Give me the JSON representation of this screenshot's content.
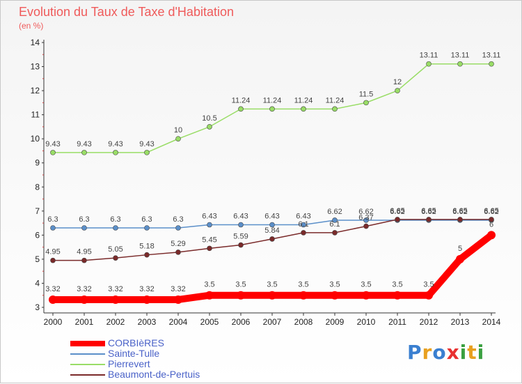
{
  "title": "Evolution du Taux de Taxe d'Habitation",
  "subtitle": "(en %)",
  "logo": {
    "letters": [
      "P",
      "r",
      "o",
      "x",
      "i",
      "t",
      "i"
    ],
    "colors": [
      "#3a7fd0",
      "#e8a020",
      "#3a7fd0",
      "#e83030",
      "#3aa040",
      "#e8a020",
      "#3aa040"
    ]
  },
  "chart_data": {
    "type": "line",
    "x": [
      2000,
      2001,
      2002,
      2003,
      2004,
      2005,
      2006,
      2007,
      2008,
      2009,
      2010,
      2011,
      2012,
      2013,
      2014
    ],
    "ylim": [
      3,
      14
    ],
    "yticks": [
      3,
      4,
      5,
      6,
      7,
      8,
      9,
      10,
      11,
      12,
      13,
      14
    ],
    "grid": false,
    "legend_position": "bottom-left",
    "series": [
      {
        "name": "CORBIèRES",
        "color": "#ff0000",
        "values": [
          3.32,
          3.32,
          3.32,
          3.32,
          3.32,
          3.5,
          3.5,
          3.5,
          3.5,
          3.5,
          3.5,
          3.5,
          3.5,
          5,
          6
        ],
        "labels": [
          "3.32",
          "3.32",
          "3.32",
          "3.32",
          "3.32",
          "3.5",
          "3.5",
          "3.5",
          "3.5",
          "3.5",
          "3.5",
          "3.5",
          "3.5",
          "5",
          "6"
        ]
      },
      {
        "name": "Sainte-Tulle",
        "color": "#5b8fc9",
        "values": [
          6.3,
          6.3,
          6.3,
          6.3,
          6.3,
          6.43,
          6.43,
          6.43,
          6.43,
          6.62,
          6.62,
          6.62,
          6.62,
          6.62,
          6.62
        ],
        "labels": [
          "6.3",
          "6.3",
          "6.3",
          "6.3",
          "6.3",
          "6.43",
          "6.43",
          "6.43",
          "6.43",
          "6.62",
          "6.62",
          "6.62",
          "6.62",
          "6.62",
          "6.62"
        ]
      },
      {
        "name": "Pierrevert",
        "color": "#99dd66",
        "values": [
          9.43,
          9.43,
          9.43,
          9.43,
          10,
          10.5,
          11.24,
          11.24,
          11.24,
          11.24,
          11.5,
          12,
          13.11,
          13.11,
          13.11
        ],
        "labels": [
          "9.43",
          "9.43",
          "9.43",
          "9.43",
          "10",
          "10.5",
          "11.24",
          "11.24",
          "11.24",
          "11.24",
          "11.5",
          "12",
          "13.11",
          "13.11",
          "13.11"
        ]
      },
      {
        "name": "Beaumont-de-Pertuis",
        "color": "#7a2a2a",
        "values": [
          4.95,
          4.95,
          5.05,
          5.18,
          5.29,
          5.45,
          5.59,
          5.84,
          6.1,
          6.1,
          6.37,
          6.65,
          6.65,
          6.65,
          6.65
        ],
        "labels": [
          "4.95",
          "4.95",
          "5.05",
          "5.18",
          "5.29",
          "5.45",
          "5.59",
          "5.84",
          "6.1",
          "6.1",
          "6.37",
          "6.65",
          "6.65",
          "6.65",
          "6.65"
        ]
      }
    ]
  }
}
